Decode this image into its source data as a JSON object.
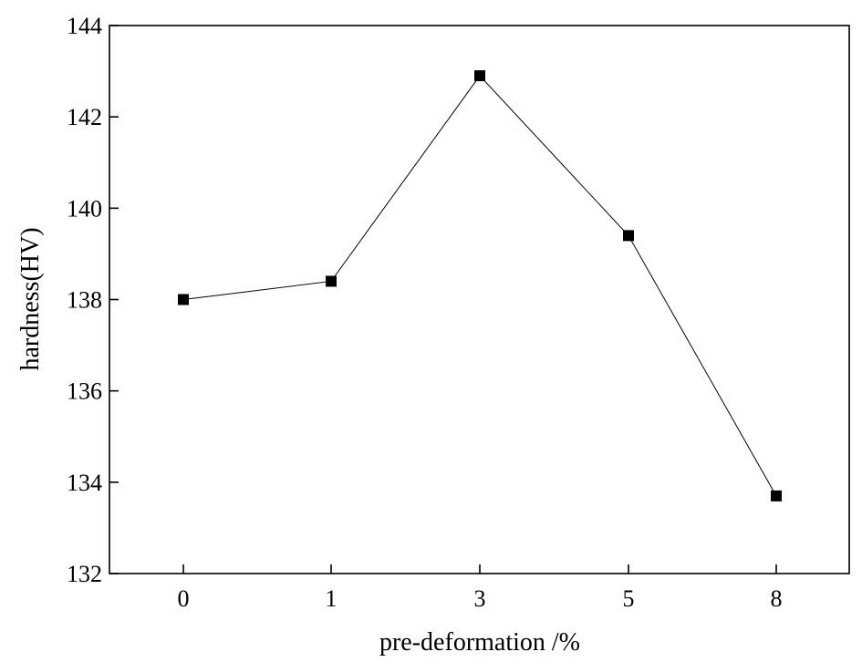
{
  "chart_data": {
    "type": "line",
    "categories": [
      "0",
      "1",
      "3",
      "5",
      "8"
    ],
    "series": [
      {
        "values": [
          138.0,
          138.4,
          142.9,
          139.4,
          133.7
        ]
      }
    ],
    "xlabel": "pre-deformation /%",
    "ylabel": "hardness(HV)",
    "ylim": [
      132,
      144
    ],
    "yticks": [
      132,
      134,
      136,
      138,
      140,
      142,
      144
    ],
    "grid": false,
    "marker": "square",
    "line_color": "#000000",
    "marker_color": "#000000"
  }
}
